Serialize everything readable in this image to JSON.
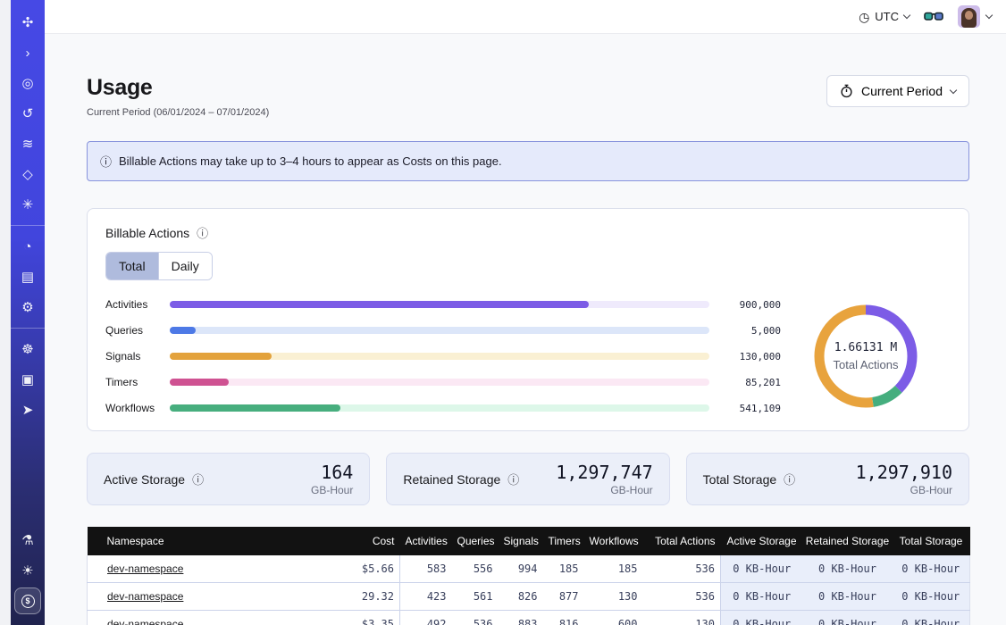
{
  "topbar": {
    "timezone": "UTC",
    "icons": {
      "clock": "◷",
      "glasses": "glasses-icon",
      "avatar": "user-avatar"
    }
  },
  "sidebar": {
    "items": [
      {
        "name": "temporal-logo",
        "glyph": "✣"
      },
      {
        "name": "expand-sidebar",
        "glyph": "›"
      },
      {
        "name": "namespaces",
        "glyph": "◎"
      },
      {
        "name": "history",
        "glyph": "↺"
      },
      {
        "name": "layers",
        "glyph": "≋"
      },
      {
        "name": "deployments",
        "glyph": "◇"
      },
      {
        "name": "nexus",
        "glyph": "✳",
        "divider_after": true
      },
      {
        "name": "usage",
        "glyph": "◔"
      },
      {
        "name": "billing",
        "glyph": "▤"
      },
      {
        "name": "settings",
        "glyph": "⚙",
        "divider_after": true
      },
      {
        "name": "support",
        "glyph": "☸"
      },
      {
        "name": "docs",
        "glyph": "▣"
      },
      {
        "name": "getting-started",
        "glyph": "➤",
        "spacer_after": true
      },
      {
        "name": "labs",
        "glyph": "⚗"
      },
      {
        "name": "theme",
        "glyph": "☀"
      },
      {
        "name": "credits",
        "glyph": "$",
        "coin": true,
        "active": true
      }
    ]
  },
  "page": {
    "title": "Usage",
    "subtitle": "Current Period (06/01/2024 – 07/01/2024)",
    "period_button_label": "Current Period"
  },
  "banner": {
    "icon": "ⓘ",
    "text": "Billable Actions may take up to 3–4 hours to appear as Costs on this page."
  },
  "billable": {
    "title": "Billable Actions",
    "info_icon": "ⓘ",
    "tabs": [
      "Total",
      "Daily"
    ],
    "active_tab": "Total"
  },
  "chart_data": [
    {
      "type": "bar",
      "orientation": "horizontal",
      "title": "Billable Actions",
      "categories": [
        "Activities",
        "Queries",
        "Signals",
        "Timers",
        "Workflows"
      ],
      "values": [
        900000,
        5000,
        130000,
        85201,
        541109
      ],
      "value_labels": [
        "900,000",
        "5,000",
        "130,000",
        "85,201",
        "541,109"
      ],
      "fill_pct": [
        77.7,
        4.8,
        18.8,
        10.9,
        31.6
      ],
      "bar_colors": [
        "#7C5CE6",
        "#4D79E6",
        "#E3A23C",
        "#CF5292",
        "#47AE7E"
      ],
      "track_colors": [
        "#EFEAFC",
        "#DCE6F9",
        "#FAF0D3",
        "#FBE8F4",
        "#DDF7E9"
      ]
    },
    {
      "type": "pie",
      "donut": true,
      "center_value": "1.66131 M",
      "center_label": "Total Actions",
      "slices": [
        {
          "name": "Activities",
          "color": "#7C5CE6",
          "pct": 37.5
        },
        {
          "name": "Workflows",
          "color": "#45AE7E",
          "pct": 10
        },
        {
          "name": "Signals",
          "color": "#E8A33D",
          "pct": 52.5
        }
      ]
    }
  ],
  "storage_cards": [
    {
      "label": "Active Storage",
      "info_icon": "ⓘ",
      "value": "164",
      "unit": "GB-Hour"
    },
    {
      "label": "Retained Storage",
      "info_icon": "ⓘ",
      "value": "1,297,747",
      "unit": "GB-Hour"
    },
    {
      "label": "Total Storage",
      "info_icon": "ⓘ",
      "value": "1,297,910",
      "unit": "GB-Hour"
    }
  ],
  "table": {
    "columns": [
      "Namespace",
      "Cost",
      "Activities",
      "Queries",
      "Signals",
      "Timers",
      "Workflows",
      "Total Actions",
      "Active Storage",
      "Retained Storage",
      "Total Storage"
    ],
    "rows": [
      [
        "dev-namespace",
        "$5.66",
        "583",
        "556",
        "994",
        "185",
        "185",
        "536",
        "0 KB-Hour",
        "0 KB-Hour",
        "0 KB-Hour"
      ],
      [
        "dev-namespace",
        "29.32",
        "423",
        "561",
        "826",
        "877",
        "130",
        "536",
        "0 KB-Hour",
        "0 KB-Hour",
        "0 KB-Hour"
      ],
      [
        "dev-namespace",
        "$3.35",
        "492",
        "536",
        "883",
        "816",
        "600",
        "130",
        "0 KB-Hour",
        "0 KB-Hour",
        "0 KB-Hour"
      ]
    ]
  }
}
